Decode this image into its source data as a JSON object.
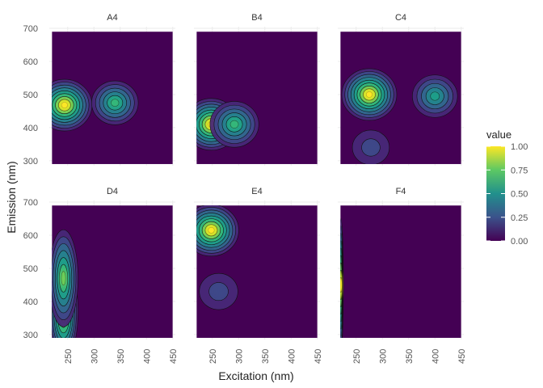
{
  "chart_data": {
    "type": "heatmap",
    "facets": [
      "A4",
      "B4",
      "C4",
      "D4",
      "E4",
      "F4"
    ],
    "xlabel": "Excitation (nm)",
    "ylabel": "Emission (nm)",
    "xlim": [
      215,
      455
    ],
    "ylim": [
      285,
      705
    ],
    "x_ticks": [
      250,
      300,
      350,
      400,
      450
    ],
    "y_ticks": [
      300,
      400,
      500,
      600,
      700
    ],
    "data_extent": {
      "x": [
        220,
        450
      ],
      "y": [
        290,
        690
      ]
    },
    "legend": {
      "title": "value",
      "position": "right",
      "ticks": [
        "0.00",
        "0.25",
        "0.50",
        "0.75",
        "1.00"
      ],
      "colors": [
        "#440154",
        "#3b528b",
        "#21908c",
        "#5dc863",
        "#fde725"
      ]
    },
    "peaks": {
      "A4": [
        {
          "ex": 244,
          "em": 468,
          "value": 1.0
        },
        {
          "ex": 340,
          "em": 475,
          "value": 0.62
        }
      ],
      "B4": [
        {
          "ex": 248,
          "em": 410,
          "value": 1.0
        },
        {
          "ex": 292,
          "em": 410,
          "value": 0.72
        }
      ],
      "C4": [
        {
          "ex": 275,
          "em": 500,
          "value": 1.0
        },
        {
          "ex": 400,
          "em": 495,
          "value": 0.55
        },
        {
          "ex": 278,
          "em": 340,
          "value": 0.18
        }
      ],
      "D4": [
        {
          "ex": 242,
          "em": 370,
          "value": 1.0
        },
        {
          "ex": 242,
          "em": 470,
          "value": 0.8
        }
      ],
      "E4": [
        {
          "ex": 248,
          "em": 615,
          "value": 1.0
        },
        {
          "ex": 262,
          "em": 430,
          "value": 0.25
        }
      ],
      "F4": [
        {
          "ex": 221,
          "em": 450,
          "value": 1.0
        }
      ]
    }
  }
}
